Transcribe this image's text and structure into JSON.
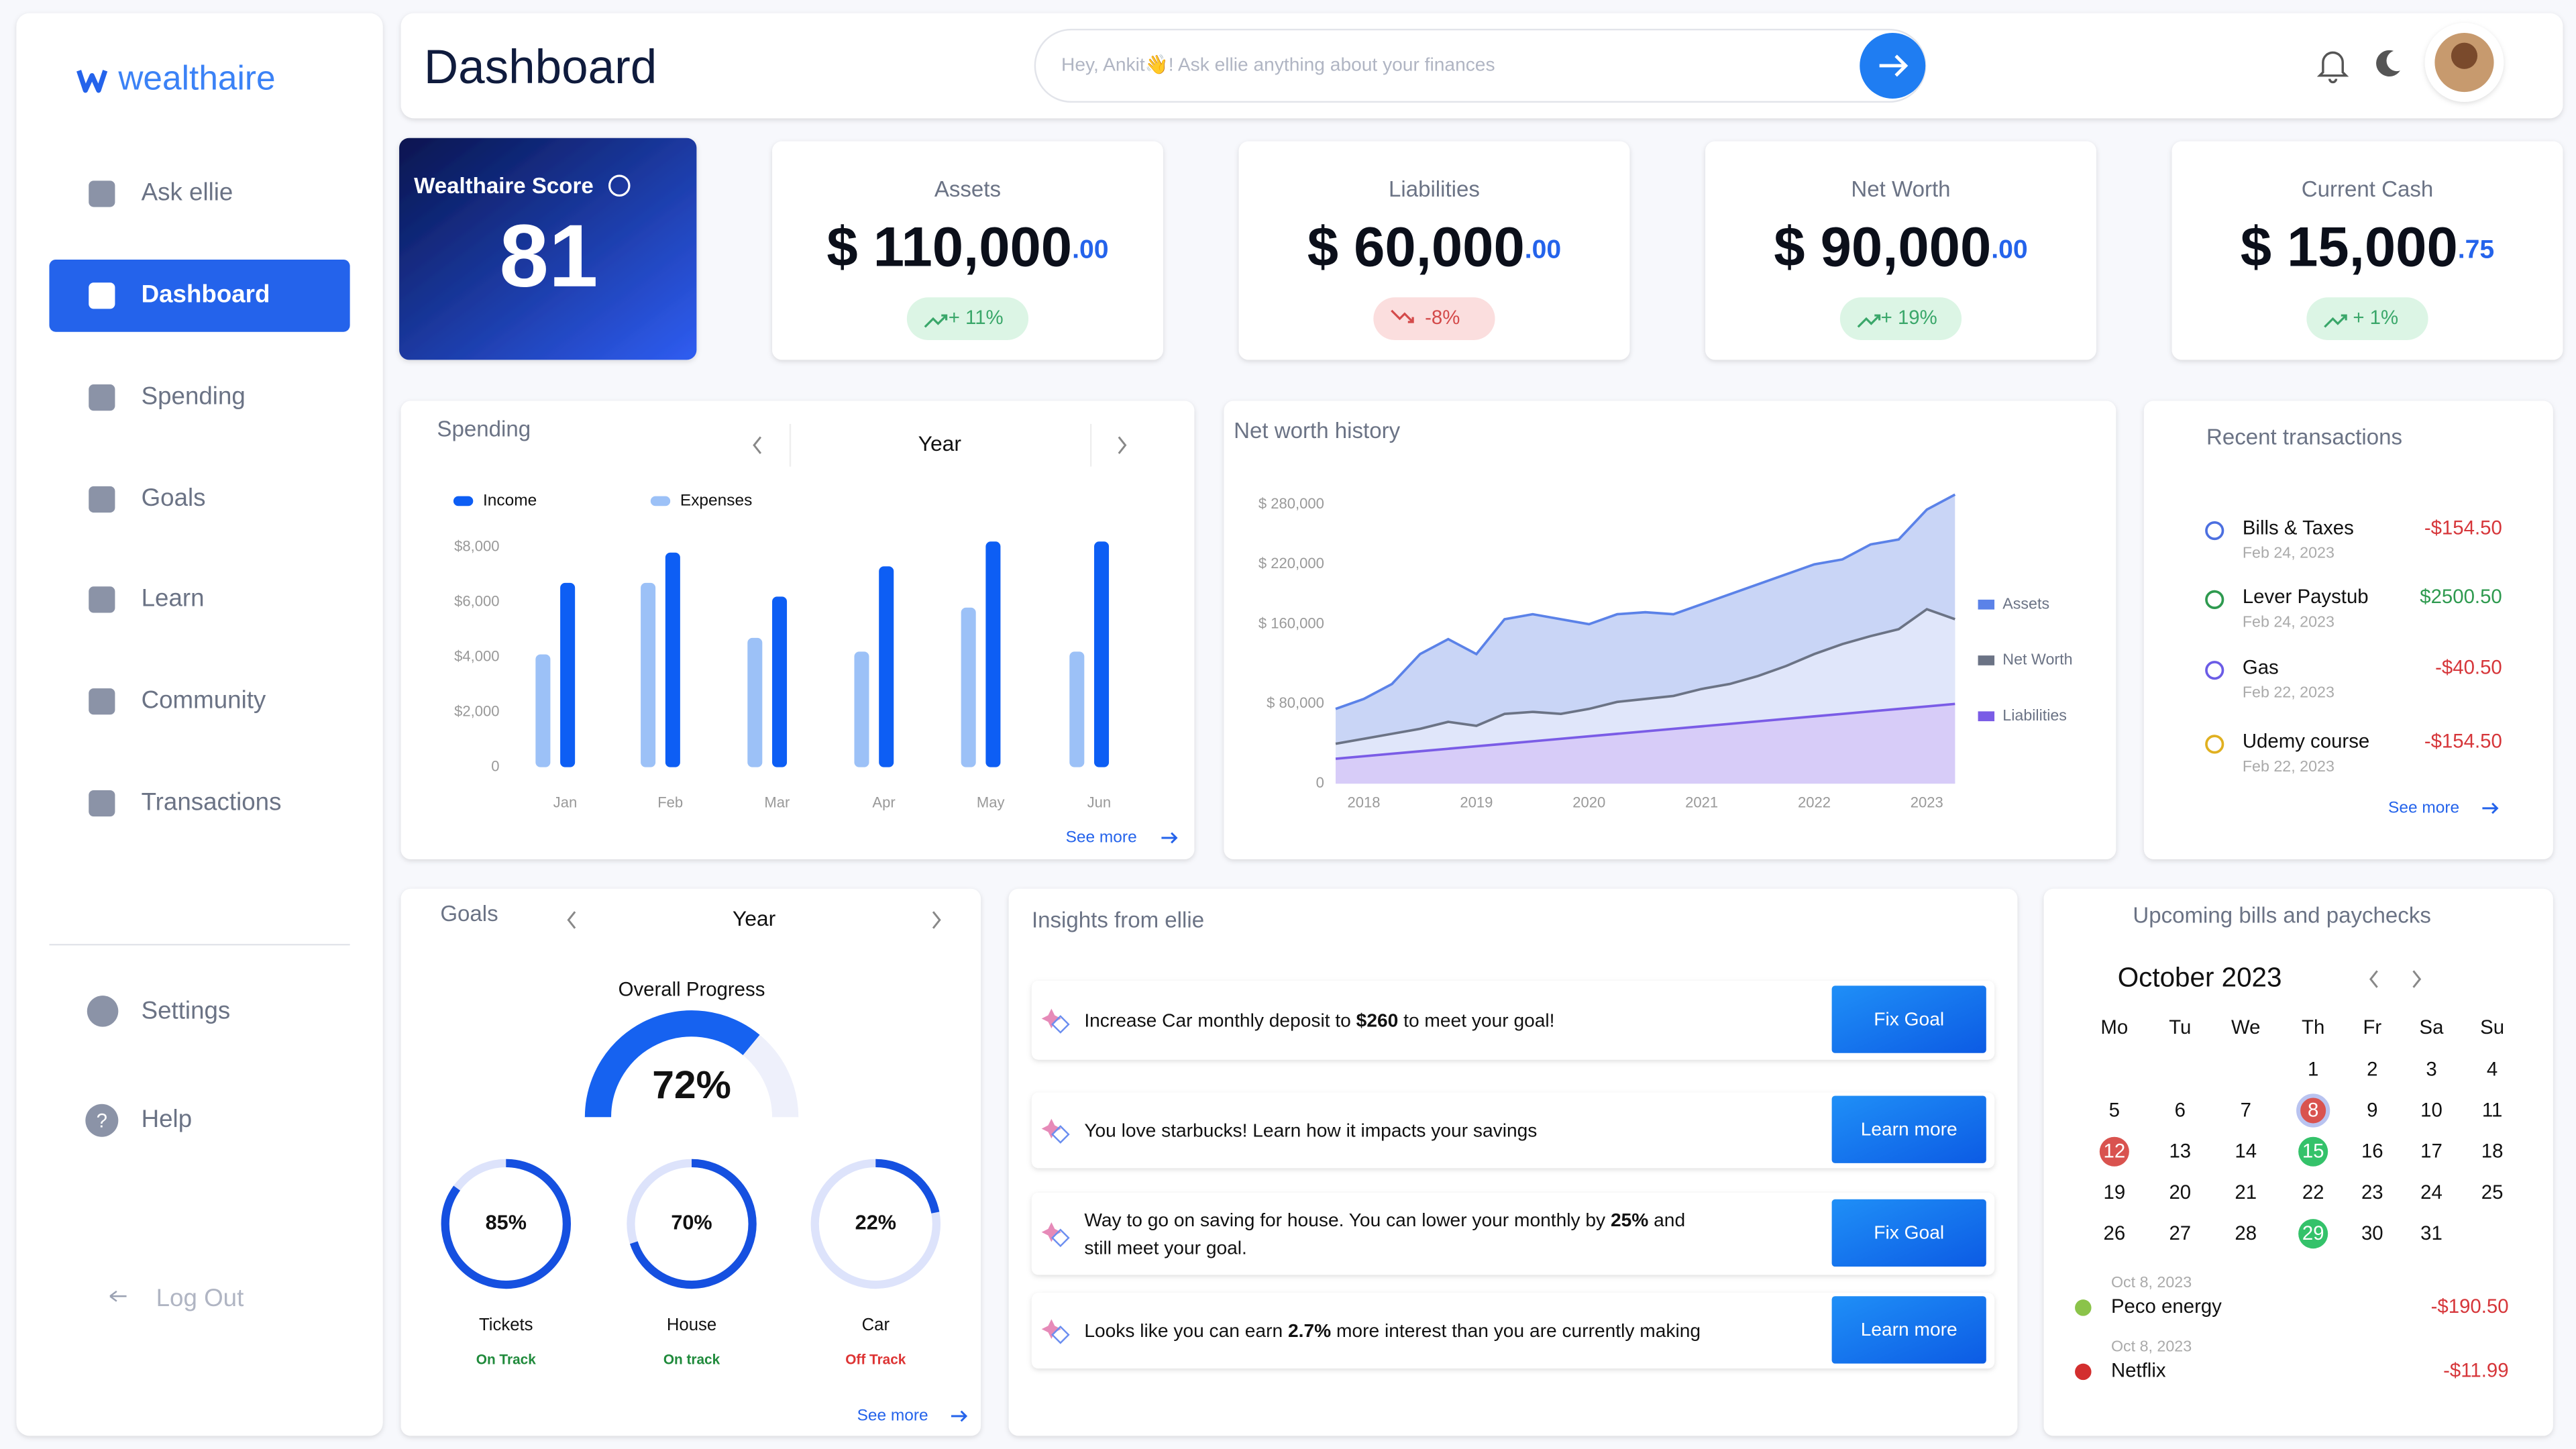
{
  "brand": "wealthaire",
  "nav": {
    "items": [
      "Ask ellie",
      "Dashboard",
      "Spending",
      "Goals",
      "Learn",
      "Community",
      "Transactions"
    ],
    "active": 1,
    "settings": "Settings",
    "help": "Help",
    "logout": "Log Out"
  },
  "header": {
    "title": "Dashboard",
    "search_placeholder": "Hey, Ankit👋! Ask ellie anything about your finances"
  },
  "score": {
    "label": "Wealthaire Score",
    "value": 81
  },
  "stats": [
    {
      "label": "Assets",
      "amount": "$ 110,000",
      "cents": ".00",
      "change": "+ 11%",
      "trend": "up"
    },
    {
      "label": "Liabilities",
      "amount": "$ 60,000",
      "cents": ".00",
      "change": "-8%",
      "trend": "down"
    },
    {
      "label": "Net Worth",
      "amount": "$ 90,000",
      "cents": ".00",
      "change": "+ 19%",
      "trend": "up"
    },
    {
      "label": "Current Cash",
      "amount": "$ 15,000",
      "cents": ".75",
      "change": "+ 1%",
      "trend": "up"
    }
  ],
  "spending": {
    "title": "Spending",
    "period": "Year",
    "see_more": "See more",
    "chart_data": {
      "type": "bar",
      "categories": [
        "Jan",
        "Feb",
        "Mar",
        "Apr",
        "May",
        "Jun"
      ],
      "series": [
        {
          "name": "Income",
          "color": "#0d5ef4",
          "values": [
            6700,
            7800,
            6200,
            7300,
            8200,
            8200
          ]
        },
        {
          "name": "Expenses",
          "color": "#9cc1f7",
          "values": [
            4100,
            6700,
            4700,
            4200,
            5800,
            4200
          ]
        }
      ],
      "ylim": [
        0,
        8000
      ],
      "yticks": [
        0,
        {
          "value": 2000,
          "label": "$2,000"
        },
        {
          "value": 4000,
          "label": "$4,000"
        },
        {
          "value": 6000,
          "label": "$6,000"
        },
        {
          "value": 8000,
          "label": "$8,000"
        }
      ],
      "grid": false
    }
  },
  "net_worth": {
    "title": "Net worth history",
    "chart_data": {
      "type": "area",
      "x": [
        2017.75,
        2018,
        2018.25,
        2018.5,
        2018.75,
        2019,
        2019.25,
        2019.5,
        2019.75,
        2020,
        2020.25,
        2020.5,
        2020.75,
        2021,
        2021.25,
        2021.5,
        2021.75,
        2022,
        2022.25,
        2022.5,
        2022.75,
        2023,
        2023.25
      ],
      "series": [
        {
          "name": "Assets",
          "color": "#5b82e8",
          "fill": "#c3d0f5",
          "values": [
            75000,
            85000,
            100000,
            130000,
            145000,
            130000,
            165000,
            170000,
            165000,
            160000,
            170000,
            172000,
            170000,
            180000,
            190000,
            200000,
            210000,
            220000,
            225000,
            240000,
            245000,
            275000,
            290000
          ]
        },
        {
          "name": "Net Worth",
          "color": "#6b7385",
          "fill": "#e2e8fb",
          "values": [
            40000,
            45000,
            50000,
            55000,
            62000,
            58000,
            70000,
            72000,
            70000,
            75000,
            82000,
            85000,
            88000,
            95000,
            100000,
            108000,
            118000,
            130000,
            140000,
            148000,
            155000,
            175000,
            165000
          ]
        },
        {
          "name": "Liabilities",
          "color": "#7a5ce6",
          "fill": "#d6c9f7",
          "values": [
            25000,
            27500,
            30000,
            32500,
            35000,
            37500,
            40000,
            42500,
            45000,
            47500,
            50000,
            52500,
            55000,
            57500,
            60000,
            62500,
            65000,
            67500,
            70000,
            72500,
            75000,
            77500,
            80000
          ]
        }
      ],
      "xlim": [
        2017.75,
        2023.25
      ],
      "xticks": [
        2018,
        2019,
        2020,
        2021,
        2022,
        2023
      ],
      "ylim": [
        0,
        300000
      ],
      "yticks": [
        0,
        {
          "value": 80000,
          "label": "$ 80,000"
        },
        {
          "value": 160000,
          "label": "$ 160,000"
        },
        {
          "value": 220000,
          "label": "$ 220,000"
        },
        {
          "value": 280000,
          "label": "$ 280,000"
        }
      ],
      "grid": false
    }
  },
  "transactions": {
    "title": "Recent transactions",
    "see_more": "See more",
    "items": [
      {
        "name": "Bills & Taxes",
        "date": "Feb 24, 2023",
        "amount": "-$154.50"
      },
      {
        "name": "Lever Paystub",
        "date": "Feb 24, 2023",
        "amount": "$2500.50"
      },
      {
        "name": "Gas",
        "date": "Feb 22, 2023",
        "amount": "-$40.50"
      },
      {
        "name": "Udemy course",
        "date": "Feb 22, 2023",
        "amount": "-$154.50"
      }
    ]
  },
  "goals": {
    "title": "Goals",
    "period": "Year",
    "overall_label": "Overall Progress",
    "overall": {
      "value": 72,
      "label": "72%"
    },
    "see_more": "See more",
    "items": [
      {
        "name": "Tickets",
        "progress": {
          "value": 85,
          "label": "85%"
        },
        "status": "On Track",
        "on_track": true
      },
      {
        "name": "House",
        "progress": {
          "value": 70,
          "label": "70%"
        },
        "status": "On track",
        "on_track": true
      },
      {
        "name": "Car",
        "progress": {
          "value": 22,
          "label": "22%"
        },
        "status": "Off Track",
        "on_track": false
      }
    ]
  },
  "insights": {
    "title": "Insights from ellie",
    "items": [
      {
        "lines": [
          [
            {
              "text": "Increase Car monthly deposit to "
            },
            {
              "text": "$260",
              "bold": true
            },
            {
              "text": " to meet your goal!"
            }
          ]
        ],
        "button": "Fix Goal"
      },
      {
        "lines": [
          [
            {
              "text": "You love starbucks! Learn how it impacts your savings"
            }
          ]
        ],
        "button": "Learn more"
      },
      {
        "lines": [
          [
            {
              "text": "Way to go on saving for house. You can lower your monthly by "
            },
            {
              "text": "25%",
              "bold": true
            },
            {
              "text": " and"
            }
          ],
          [
            {
              "text": "still meet your goal."
            }
          ]
        ],
        "button": "Fix Goal"
      },
      {
        "lines": [
          [
            {
              "text": "Looks like you can earn "
            },
            {
              "text": "2.7%",
              "bold": true
            },
            {
              "text": " more interest than you are currently making"
            }
          ]
        ],
        "button": "Learn more"
      }
    ]
  },
  "calendar": {
    "title": "Upcoming bills and paychecks",
    "month": "October 2023",
    "weekdays": [
      "Mo",
      "Tu",
      "We",
      "Th",
      "Fr",
      "Sa",
      "Su"
    ],
    "first_weekday_index": 3,
    "days": [
      1,
      2,
      3,
      4,
      5,
      6,
      7,
      8,
      9,
      10,
      11,
      12,
      13,
      14,
      15,
      16,
      17,
      18,
      19,
      20,
      21,
      22,
      23,
      24,
      25,
      26,
      27,
      28,
      29,
      30,
      31
    ],
    "highlights": [
      {
        "day": 8,
        "color": "#d9534f",
        "outline": "#b9c3f0"
      },
      {
        "day": 12,
        "color": "#d9534f"
      },
      {
        "day": 15,
        "color": "#34c26a"
      },
      {
        "day": 29,
        "color": "#34c26a"
      }
    ],
    "bills": [
      {
        "date": "Oct 8, 2023",
        "name": "Peco energy",
        "amount": "-$190.50"
      },
      {
        "date": "Oct 8, 2023",
        "name": "Netflix",
        "amount": "-$11.99"
      }
    ]
  }
}
